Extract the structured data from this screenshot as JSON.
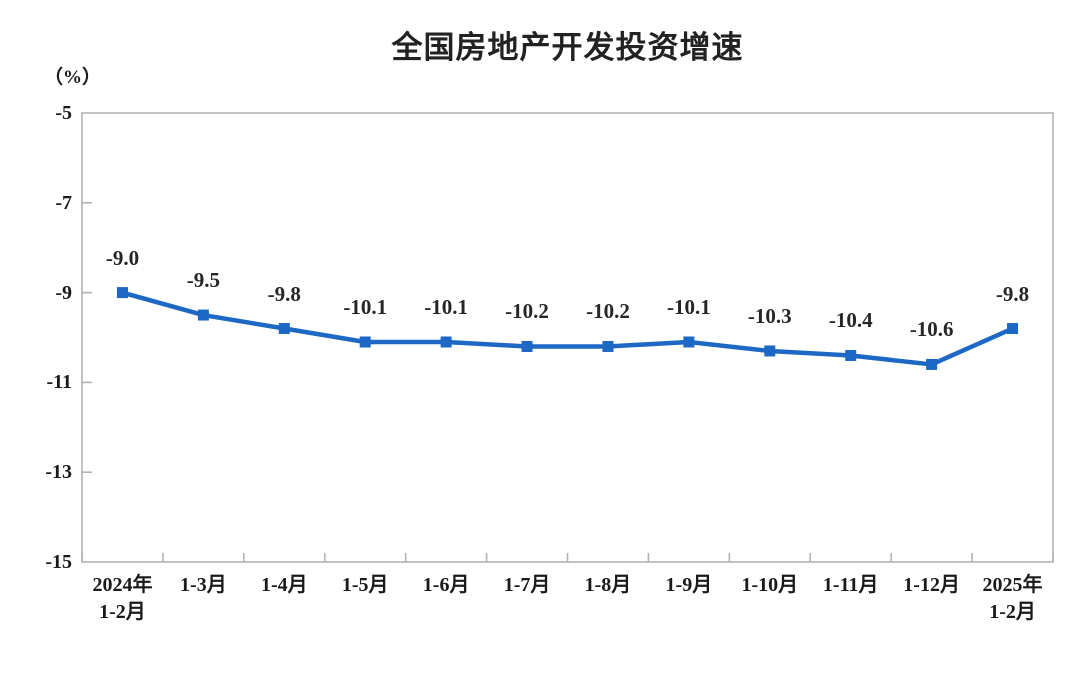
{
  "page": {
    "background_color": "#ffffff"
  },
  "chart": {
    "accent_color": "#1e68c5",
    "axis_color": "#b3b3b3",
    "text_color": "#1a1a1a"
  },
  "chart_data": {
    "type": "line",
    "title": "全国房地产开发投资增速",
    "unit": "（%）",
    "categories": [
      "2024年\n1-2月",
      "1-3月",
      "1-4月",
      "1-5月",
      "1-6月",
      "1-7月",
      "1-8月",
      "1-9月",
      "1-10月",
      "1-11月",
      "1-12月",
      "2025年\n1-2月"
    ],
    "values": [
      -9.0,
      -9.5,
      -9.8,
      -10.1,
      -10.1,
      -10.2,
      -10.2,
      -10.1,
      -10.3,
      -10.4,
      -10.6,
      -9.8
    ],
    "point_labels": [
      "-9.0",
      "-9.5",
      "-9.8",
      "-10.1",
      "-10.1",
      "-10.2",
      "-10.2",
      "-10.1",
      "-10.3",
      "-10.4",
      "-10.6",
      "-9.8"
    ],
    "ylim": [
      -15,
      -5
    ],
    "yticks": [
      -5,
      -7,
      -9,
      -11,
      -13,
      -15
    ],
    "grid": false,
    "legend": "none",
    "marker": "square",
    "line_color": "#1e68c5",
    "xlabel": "",
    "ylabel": "（%）"
  }
}
